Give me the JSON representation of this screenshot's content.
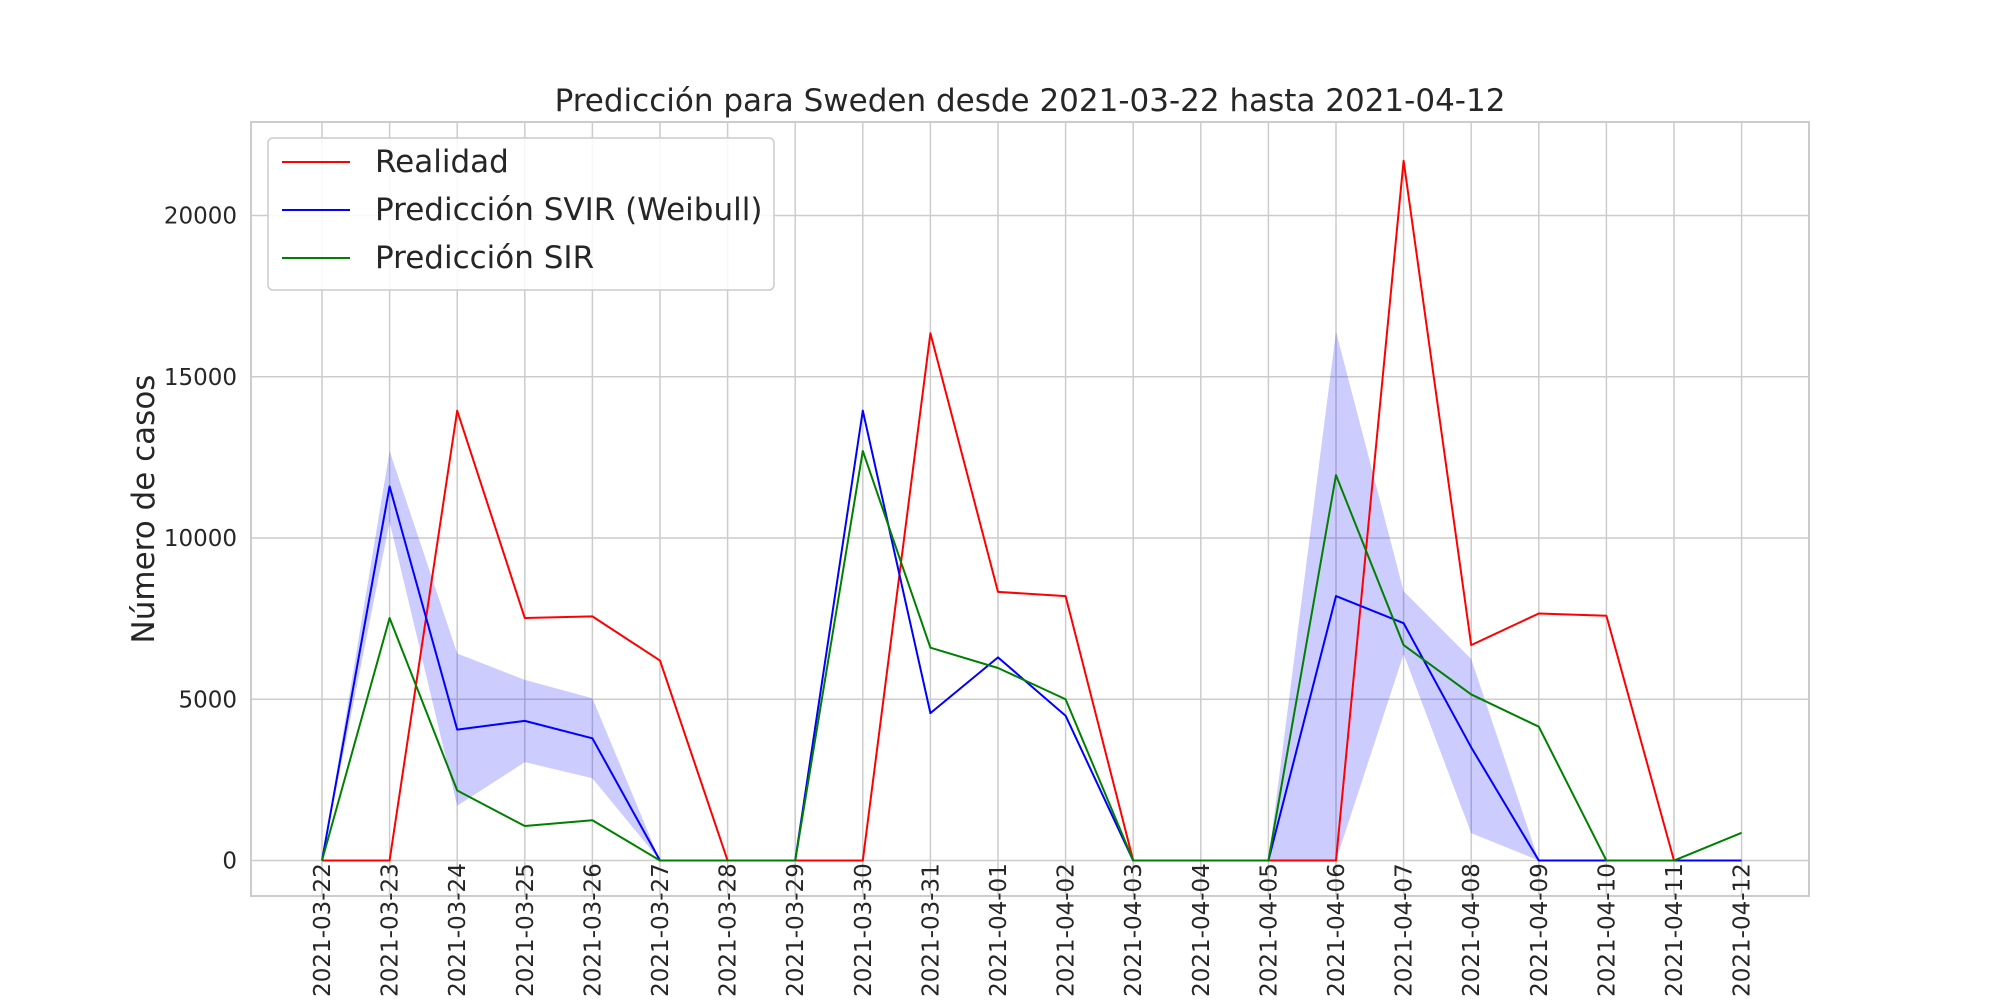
{
  "chart_data": {
    "type": "line",
    "title": "Predicción para Sweden desde 2021-03-22 hasta 2021-04-12",
    "xlabel": "",
    "ylabel": "Número de casos",
    "ylim": [
      -1100,
      22900
    ],
    "yticks": [
      0,
      5000,
      10000,
      15000,
      20000
    ],
    "grid": true,
    "legend_position": "top-left",
    "x": [
      "2021-03-22",
      "2021-03-23",
      "2021-03-24",
      "2021-03-25",
      "2021-03-26",
      "2021-03-27",
      "2021-03-28",
      "2021-03-29",
      "2021-03-30",
      "2021-03-31",
      "2021-04-01",
      "2021-04-02",
      "2021-04-03",
      "2021-04-04",
      "2021-04-05",
      "2021-04-06",
      "2021-04-07",
      "2021-04-08",
      "2021-04-09",
      "2021-04-10",
      "2021-04-11",
      "2021-04-12"
    ],
    "series": [
      {
        "name": "Realidad",
        "color": "#ff0000",
        "values": [
          0,
          0,
          13950,
          7520,
          7570,
          6200,
          0,
          0,
          0,
          16350,
          8330,
          8200,
          0,
          0,
          0,
          0,
          21700,
          6680,
          7660,
          7590,
          0,
          null
        ]
      },
      {
        "name": "Predicción SVIR (Weibull)",
        "color": "#0000ff",
        "values": [
          0,
          11600,
          4060,
          4330,
          3790,
          0,
          0,
          0,
          13950,
          4570,
          6300,
          4490,
          0,
          0,
          0,
          8200,
          7360,
          3510,
          0,
          0,
          0,
          0
        ],
        "band_color": "#0000ff",
        "band_lower": [
          0,
          10500,
          1700,
          3050,
          2550,
          0,
          0,
          0,
          13950,
          4570,
          6300,
          4490,
          0,
          0,
          0,
          0,
          6400,
          850,
          0,
          0,
          0,
          0
        ],
        "band_upper": [
          0,
          12700,
          6420,
          5600,
          5030,
          0,
          0,
          0,
          13950,
          4570,
          6300,
          4490,
          0,
          0,
          0,
          16400,
          8350,
          6250,
          0,
          0,
          0,
          0
        ]
      },
      {
        "name": "Predicción SIR",
        "color": "#008000",
        "values": [
          0,
          7520,
          2170,
          1070,
          1250,
          0,
          0,
          0,
          12700,
          6600,
          5970,
          5000,
          0,
          0,
          0,
          11950,
          6680,
          5150,
          4150,
          0,
          0,
          860
        ]
      }
    ]
  }
}
